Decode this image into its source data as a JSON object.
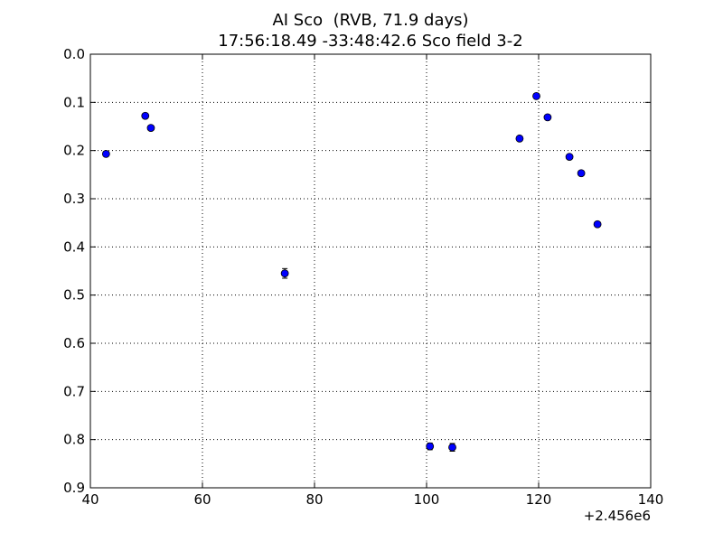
{
  "chart_data": {
    "type": "scatter",
    "title": "AI Sco  (RVB, 71.9 days)",
    "subtitle": "17:56:18.49 -33:48:42.6 Sco field 3-2",
    "xlabel": "",
    "ylabel": "",
    "xlim": [
      40,
      140
    ],
    "ylim": [
      0.9,
      0.0
    ],
    "y_inverted": true,
    "x_offset_label": "+2.456e6",
    "x_ticks": [
      "40",
      "60",
      "80",
      "100",
      "120",
      "140"
    ],
    "y_ticks": [
      "0.0",
      "0.1",
      "0.2",
      "0.3",
      "0.4",
      "0.5",
      "0.6",
      "0.7",
      "0.8",
      "0.9"
    ],
    "grid": true,
    "grid_style": "dotted",
    "marker_color": "#0000ff",
    "errorbar_color": "#000000",
    "series": [
      {
        "points": [
          {
            "x": 42.8,
            "y": 0.207,
            "err": 0.004
          },
          {
            "x": 49.8,
            "y": 0.128,
            "err": 0.004
          },
          {
            "x": 50.8,
            "y": 0.153,
            "err": 0.004
          },
          {
            "x": 74.7,
            "y": 0.455,
            "err": 0.01
          },
          {
            "x": 100.6,
            "y": 0.814,
            "err": 0.007
          },
          {
            "x": 104.6,
            "y": 0.816,
            "err": 0.008
          },
          {
            "x": 116.6,
            "y": 0.175,
            "err": 0.004
          },
          {
            "x": 119.6,
            "y": 0.087,
            "err": 0.004
          },
          {
            "x": 121.6,
            "y": 0.131,
            "err": 0.004
          },
          {
            "x": 125.5,
            "y": 0.213,
            "err": 0.004
          },
          {
            "x": 127.6,
            "y": 0.247,
            "err": 0.004
          },
          {
            "x": 130.5,
            "y": 0.353,
            "err": 0.004
          }
        ]
      }
    ]
  }
}
